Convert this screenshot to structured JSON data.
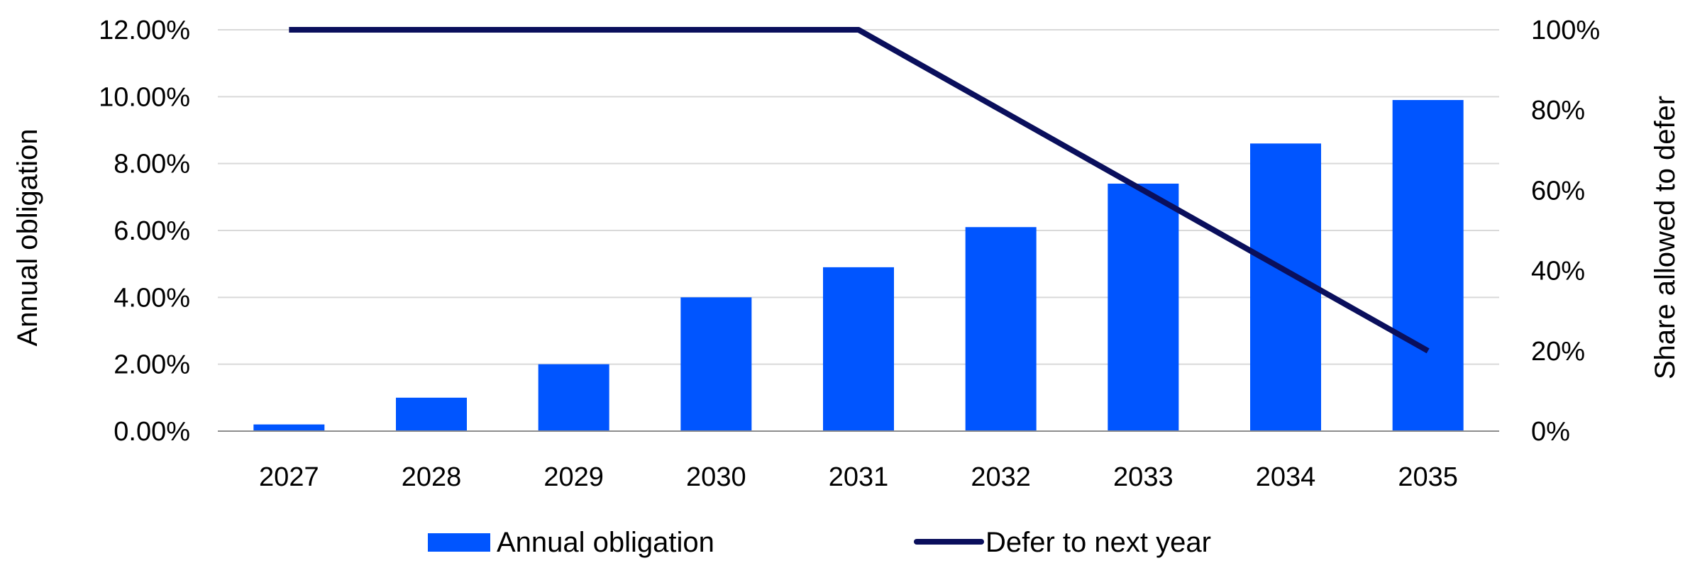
{
  "chart_data": {
    "type": "bar",
    "categories": [
      "2027",
      "2028",
      "2029",
      "2030",
      "2031",
      "2032",
      "2033",
      "2034",
      "2035"
    ],
    "series": [
      {
        "name": "Annual obligation",
        "type": "bar",
        "axis": "left",
        "color": "#0055FF",
        "values": [
          0.2,
          1.0,
          2.0,
          4.0,
          4.9,
          6.1,
          7.4,
          8.6,
          9.9
        ]
      },
      {
        "name": "Defer to next year",
        "type": "line",
        "axis": "right",
        "color": "#0A0F5C",
        "values": [
          100,
          100,
          100,
          100,
          100,
          80,
          60,
          40,
          20
        ]
      }
    ],
    "ylabel": "Annual obligation",
    "y2label": "Share allowed to defer",
    "ylim": [
      0,
      12
    ],
    "y2lim": [
      0,
      100
    ],
    "yticks": [
      "0.00%",
      "2.00%",
      "4.00%",
      "6.00%",
      "8.00%",
      "10.00%",
      "12.00%"
    ],
    "y2ticks": [
      "0%",
      "20%",
      "40%",
      "60%",
      "80%",
      "100%"
    ],
    "grid": true,
    "legend_position": "bottom"
  }
}
